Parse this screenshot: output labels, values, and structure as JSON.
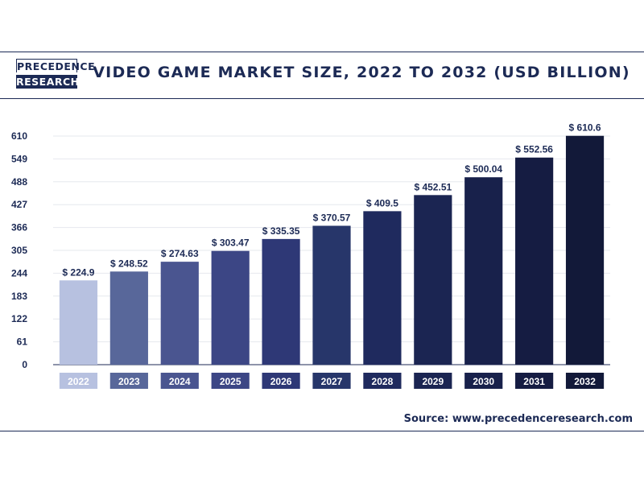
{
  "header": {
    "logo_top": "PRECEDENCE",
    "logo_bottom": "RESEARCH",
    "title": "VIDEO GAME MARKET SIZE, 2022 TO 2032 (USD BILLION)"
  },
  "source": "Source: www.precedenceresearch.com",
  "colors": {
    "brand": "#1c2a55",
    "bar_colors": [
      "#b7c1e0",
      "#58679a",
      "#4a5590",
      "#3c4685",
      "#2e3876",
      "#27366a",
      "#1f2a5e",
      "#1b2552",
      "#18214b",
      "#151c42",
      "#121939"
    ]
  },
  "chart_data": {
    "type": "bar",
    "title": "VIDEO GAME MARKET SIZE, 2022 TO 2032 (USD BILLION)",
    "categories": [
      "2022",
      "2023",
      "2024",
      "2025",
      "2026",
      "2027",
      "2028",
      "2029",
      "2030",
      "2031",
      "2032"
    ],
    "values": [
      224.9,
      248.52,
      274.63,
      303.47,
      335.35,
      370.57,
      409.5,
      452.51,
      500.04,
      552.56,
      610.6
    ],
    "data_labels": [
      "$ 224.9",
      "$ 248.52",
      "$ 274.63",
      "$ 303.47",
      "$ 335.35",
      "$ 370.57",
      "$ 409.5",
      "$ 452.51",
      "$ 500.04",
      "$ 552.56",
      "$ 610.6"
    ],
    "yticks": [
      0,
      61,
      122,
      183,
      244,
      305,
      366,
      427,
      488,
      549,
      610
    ],
    "ylim": [
      0,
      610
    ],
    "xlabel": "",
    "ylabel": "",
    "grid": true,
    "legend": "none"
  }
}
